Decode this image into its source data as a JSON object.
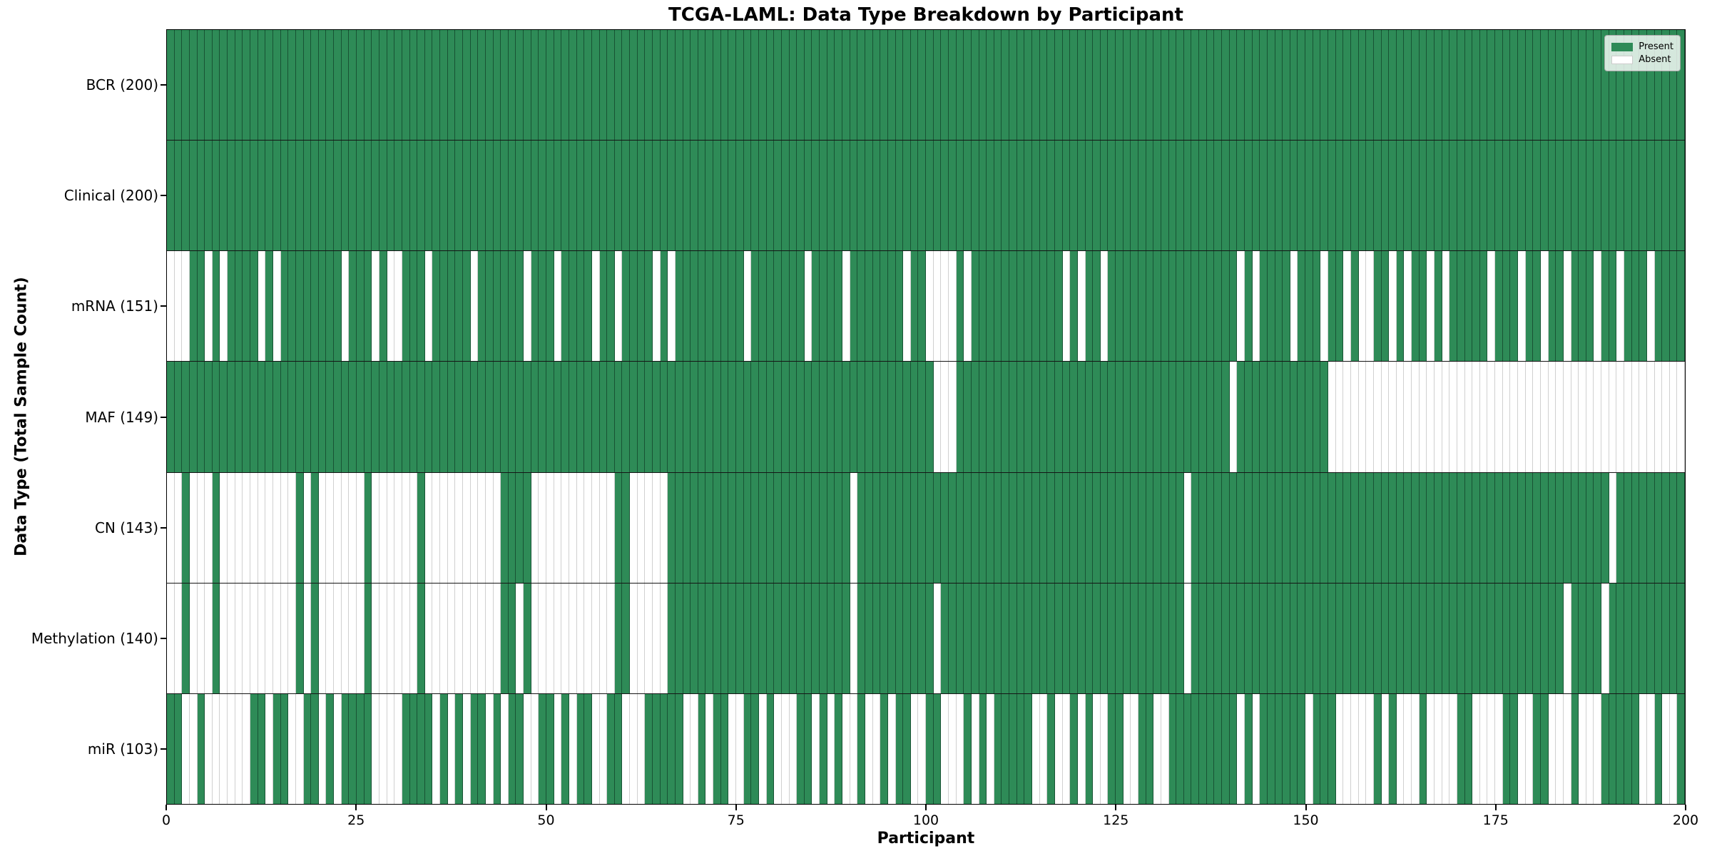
{
  "title": "TCGA-LAML: Data Type Breakdown by Participant",
  "xlabel": "Participant",
  "ylabel": "Data Type (Total Sample Count)",
  "legend": {
    "present_label": "Present",
    "absent_label": "Absent"
  },
  "colors": {
    "present": "#2e8b57",
    "absent": "#ffffff",
    "row_divider": "#151515",
    "spine": "#000000"
  },
  "chart_data": {
    "type": "heatmap",
    "title": "TCGA-LAML: Data Type Breakdown by Participant",
    "xlabel": "Participant",
    "ylabel": "Data Type (Total Sample Count)",
    "legend_entries": [
      "Present",
      "Absent"
    ],
    "legend_position": "upper right",
    "n_participants": 200,
    "x_ticks": [
      0,
      25,
      50,
      75,
      100,
      125,
      150,
      175,
      200
    ],
    "x_range": [
      0,
      200
    ],
    "rows": [
      {
        "label": "BCR (200)",
        "name": "BCR",
        "total": 200,
        "present": "all"
      },
      {
        "label": "Clinical (200)",
        "name": "Clinical",
        "total": 200,
        "present": "all"
      },
      {
        "label": "mRNA (151)",
        "name": "mRNA",
        "total": 151,
        "absent": [
          0,
          1,
          2,
          5,
          7,
          12,
          14,
          23,
          27,
          29,
          30,
          34,
          40,
          47,
          51,
          56,
          59,
          64,
          66,
          76,
          84,
          89,
          97,
          100,
          101,
          102,
          103,
          105,
          118,
          120,
          123,
          141,
          143,
          148,
          152,
          155,
          157,
          158,
          161,
          163,
          166,
          168,
          174,
          178,
          181,
          184,
          188,
          191,
          195
        ]
      },
      {
        "label": "MAF (149)",
        "name": "MAF",
        "total": 149,
        "absent": [
          101,
          102,
          103,
          140,
          153,
          154,
          155,
          156,
          157,
          158,
          159,
          160,
          161,
          162,
          163,
          164,
          165,
          166,
          167,
          168,
          169,
          170,
          171,
          172,
          173,
          174,
          175,
          176,
          177,
          178,
          179,
          180,
          181,
          182,
          183,
          184,
          185,
          186,
          187,
          188,
          189,
          190,
          191,
          192,
          193,
          194,
          195,
          196,
          197,
          198,
          199
        ]
      },
      {
        "label": "CN (143)",
        "name": "CN",
        "total": 143,
        "absent": [
          0,
          1,
          3,
          4,
          5,
          7,
          8,
          9,
          10,
          11,
          12,
          13,
          14,
          15,
          16,
          18,
          20,
          21,
          22,
          23,
          24,
          25,
          27,
          28,
          29,
          30,
          31,
          32,
          34,
          35,
          36,
          37,
          38,
          39,
          40,
          41,
          42,
          43,
          48,
          49,
          50,
          51,
          52,
          53,
          54,
          55,
          56,
          57,
          58,
          61,
          62,
          63,
          64,
          65,
          90,
          134,
          190
        ]
      },
      {
        "label": "Methylation (140)",
        "name": "Methylation",
        "total": 140,
        "absent": [
          0,
          1,
          3,
          4,
          5,
          7,
          8,
          9,
          10,
          11,
          12,
          13,
          14,
          15,
          16,
          18,
          20,
          21,
          22,
          23,
          24,
          25,
          27,
          28,
          29,
          30,
          31,
          32,
          34,
          35,
          36,
          37,
          38,
          39,
          40,
          41,
          42,
          43,
          46,
          48,
          49,
          50,
          51,
          52,
          53,
          54,
          55,
          56,
          57,
          58,
          61,
          62,
          63,
          64,
          65,
          90,
          101,
          134,
          184,
          189
        ]
      },
      {
        "label": "miR (103)",
        "name": "miR",
        "total": 103,
        "present": [
          0,
          1,
          4,
          11,
          12,
          14,
          15,
          18,
          19,
          21,
          23,
          24,
          25,
          26,
          31,
          32,
          33,
          34,
          36,
          38,
          40,
          41,
          43,
          45,
          46,
          49,
          50,
          52,
          54,
          55,
          58,
          59,
          63,
          64,
          65,
          66,
          67,
          70,
          72,
          73,
          76,
          77,
          79,
          83,
          84,
          86,
          88,
          91,
          94,
          96,
          97,
          100,
          101,
          105,
          107,
          109,
          110,
          111,
          112,
          113,
          116,
          119,
          121,
          124,
          125,
          128,
          129,
          132,
          133,
          134,
          135,
          136,
          137,
          138,
          139,
          140,
          142,
          144,
          145,
          146,
          147,
          148,
          149,
          151,
          152,
          153,
          159,
          161,
          165,
          170,
          171,
          176,
          177,
          180,
          181,
          185,
          189,
          190,
          191,
          192,
          193,
          196,
          199
        ]
      }
    ]
  }
}
